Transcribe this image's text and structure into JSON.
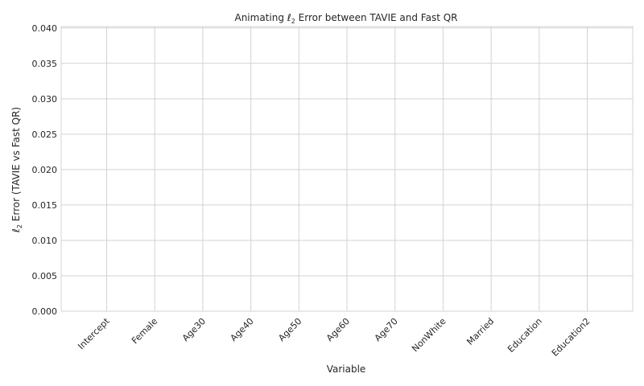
{
  "chart_data": {
    "type": "bar",
    "title_prefix": "Animating ",
    "title_symbol": "ℓ",
    "title_subscript": "2",
    "title_suffix": " Error between TAVIE and Fast QR",
    "xlabel": "Variable",
    "ylabel_symbol": "ℓ",
    "ylabel_subscript": "2",
    "ylabel_suffix": " Error (TAVIE vs Fast QR)",
    "categories": [
      "Intercept",
      "Female",
      "Age30",
      "Age40",
      "Age50",
      "Age60",
      "Age70",
      "NonWhite",
      "Married",
      "Education",
      "Education2"
    ],
    "values": [
      0,
      0,
      0,
      0,
      0,
      0,
      0,
      0,
      0,
      0,
      0
    ],
    "ylim": [
      0,
      0.0402
    ],
    "yticks": [
      "0.000",
      "0.005",
      "0.010",
      "0.015",
      "0.020",
      "0.025",
      "0.030",
      "0.035",
      "0.040"
    ],
    "ytick_values": [
      0,
      0.005,
      0.01,
      0.015,
      0.02,
      0.025,
      0.03,
      0.035,
      0.04
    ],
    "grid": true,
    "colors": {
      "grid": "#d3d3d3",
      "frame": "#d3d3d3",
      "text": "#262626",
      "bar": "#4c72b0"
    }
  }
}
